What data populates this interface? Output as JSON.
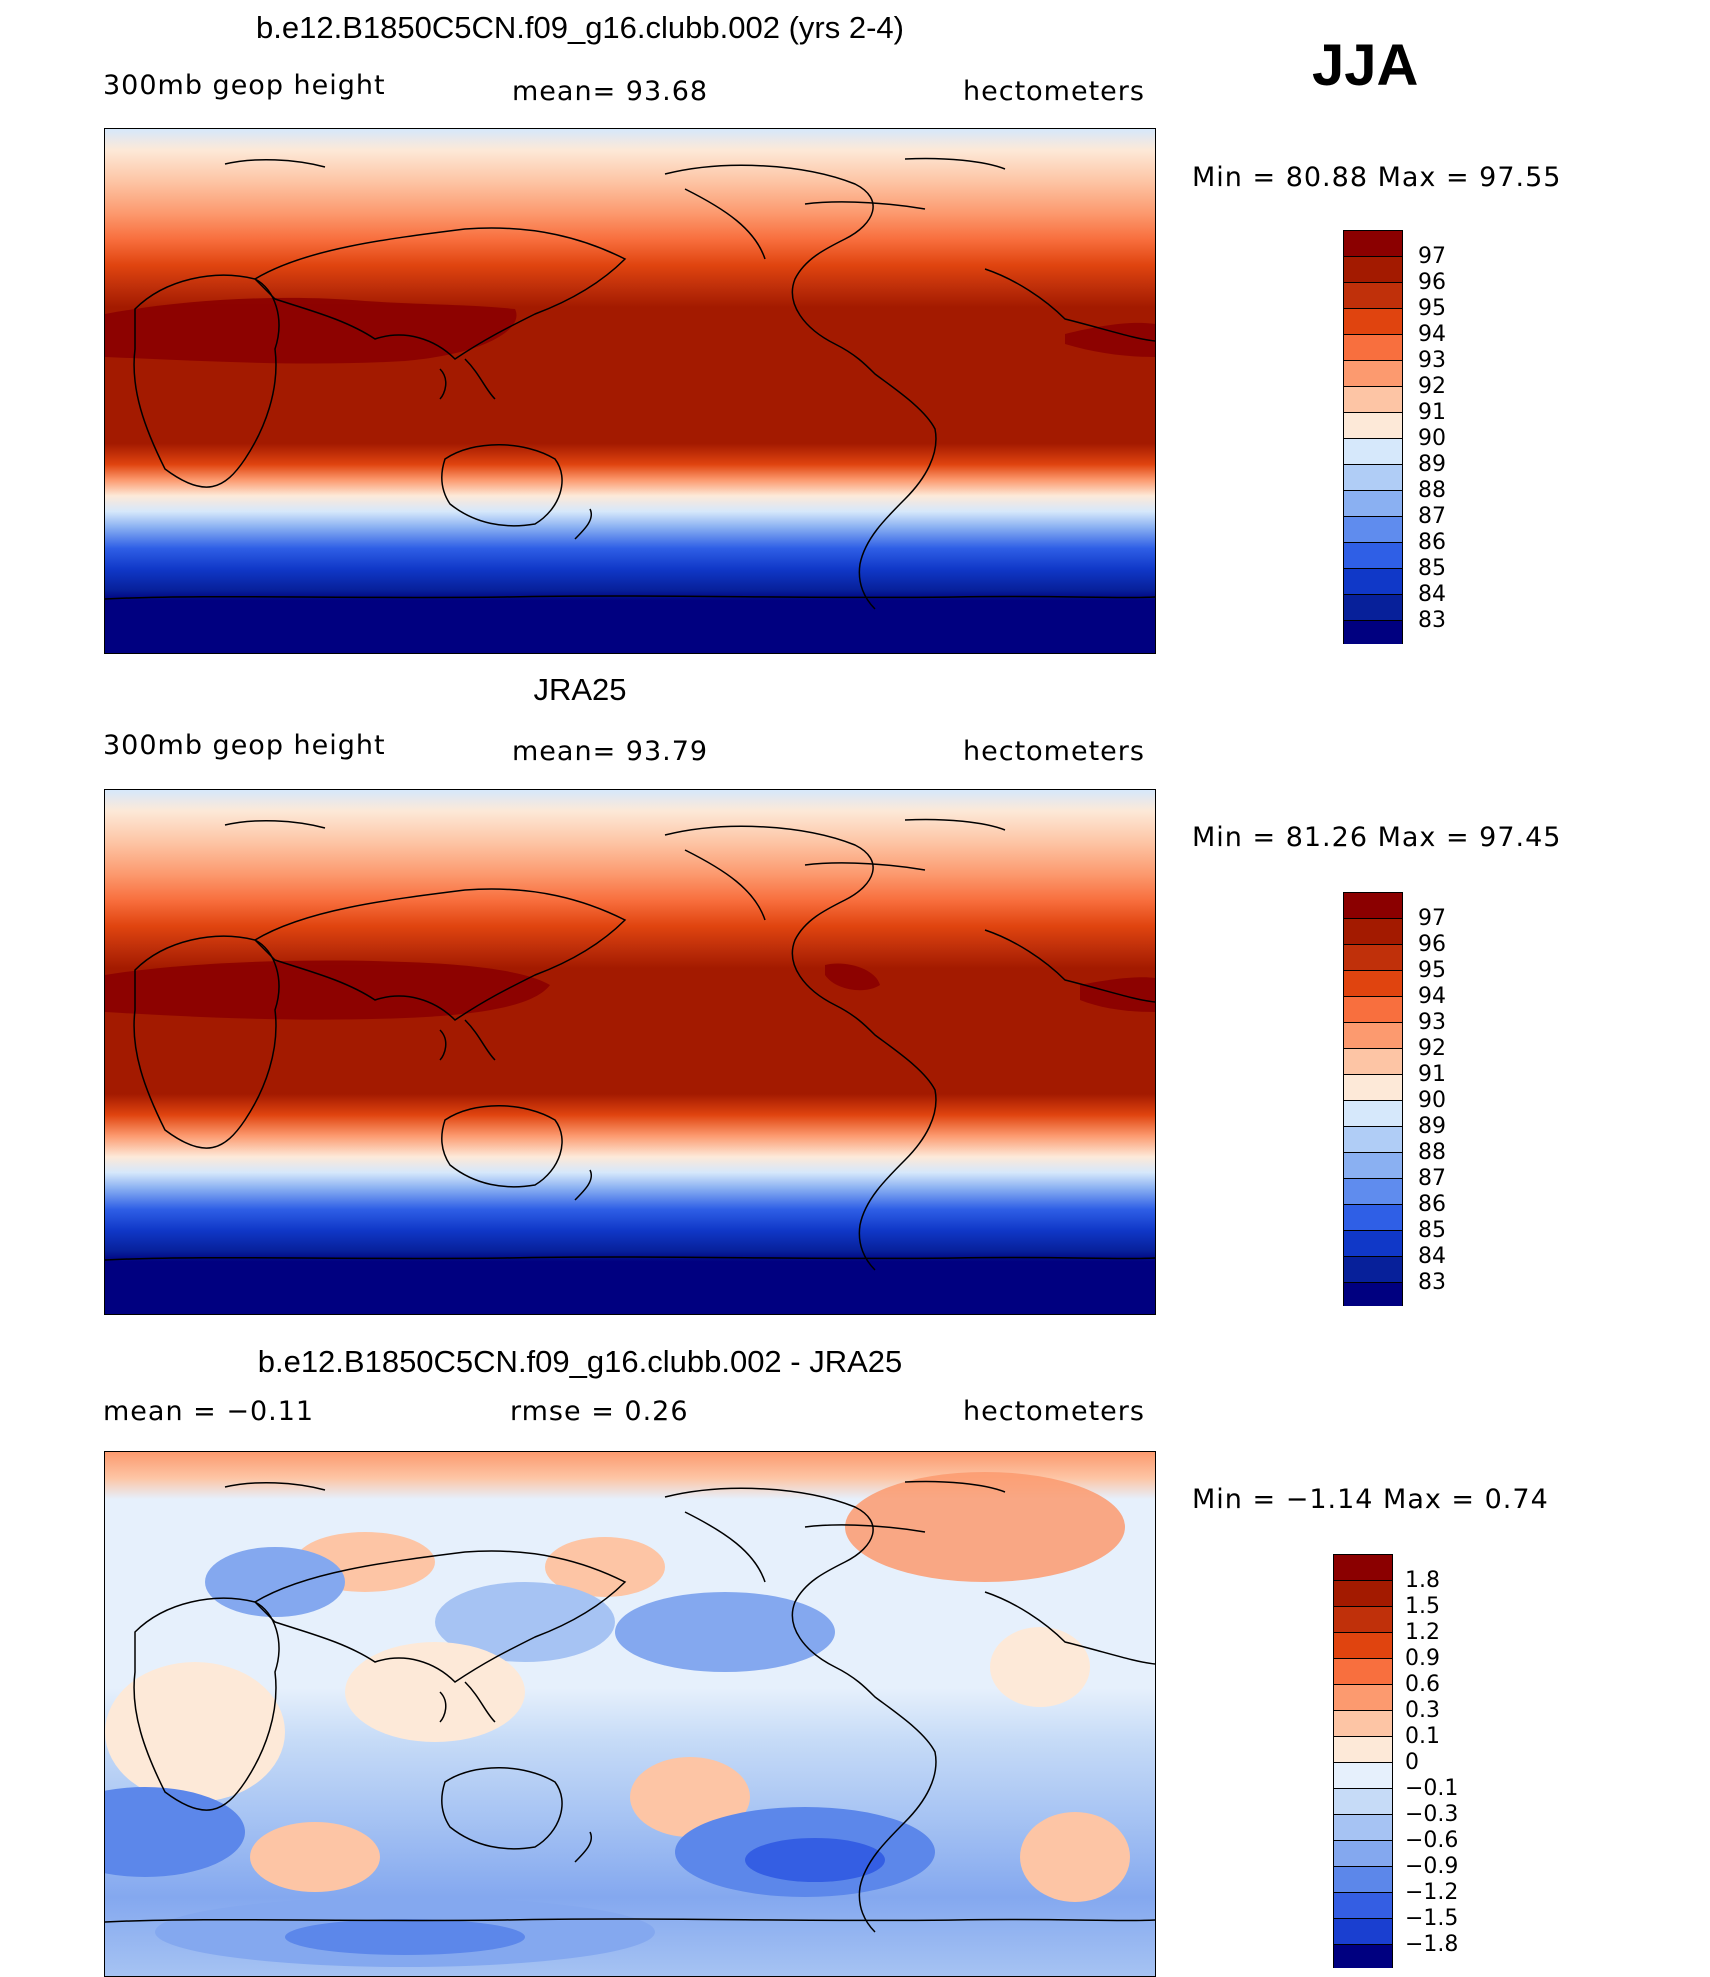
{
  "season": "JJA",
  "panels": [
    {
      "id": "model",
      "title": "b.e12.B1850C5CN.f09_g16.clubb.002 (yrs 2-4)",
      "left_label": "300mb  geop  height",
      "center_label": "mean=   93.68",
      "right_label": "hectometers",
      "minmax": "Min  =    80.88  Max  =    97.55",
      "cbar_ticks": [
        "97",
        "96",
        "95",
        "94",
        "93",
        "92",
        "91",
        "90",
        "89",
        "88",
        "87",
        "86",
        "85",
        "84",
        "83"
      ]
    },
    {
      "id": "obs",
      "title": "JRA25",
      "left_label": "300mb  geop  height",
      "center_label": "mean=   93.79",
      "right_label": "hectometers",
      "minmax": "Min  =    81.26  Max  =    97.45",
      "cbar_ticks": [
        "97",
        "96",
        "95",
        "94",
        "93",
        "92",
        "91",
        "90",
        "89",
        "88",
        "87",
        "86",
        "85",
        "84",
        "83"
      ]
    },
    {
      "id": "diff",
      "title": "b.e12.B1850C5CN.f09_g16.clubb.002 - JRA25",
      "left_label": "mean  =    −0.11",
      "center_label": "rmse  =     0.26",
      "right_label": "hectometers",
      "minmax": "Min  =    −1.14  Max  =      0.74",
      "cbar_ticks": [
        "1.8",
        "1.5",
        "1.2",
        "0.9",
        "0.6",
        "0.3",
        "0.1",
        "0",
        "−0.1",
        "−0.3",
        "−0.6",
        "−0.9",
        "−1.2",
        "−1.5",
        "−1.8"
      ]
    }
  ],
  "colors": {
    "seq_scale": [
      "#8b0000",
      "#a31a00",
      "#c0300a",
      "#e0440f",
      "#f86f3e",
      "#fc9a6f",
      "#fdc5a5",
      "#fde9d8",
      "#d6e8fb",
      "#b0cdf6",
      "#8ab0f2",
      "#5f8cee",
      "#2f5fe6",
      "#1038c8",
      "#07209a",
      "#000080"
    ],
    "div_scale": [
      "#8b0000",
      "#a31a00",
      "#c0300a",
      "#e0440f",
      "#f86f3e",
      "#fc9a6f",
      "#fdc5a5",
      "#fde9d8",
      "#e6f0fc",
      "#c6dbf7",
      "#a6c3f3",
      "#84a8ef",
      "#5c87ea",
      "#345ee3",
      "#1a3fd0",
      "#000080"
    ]
  }
}
